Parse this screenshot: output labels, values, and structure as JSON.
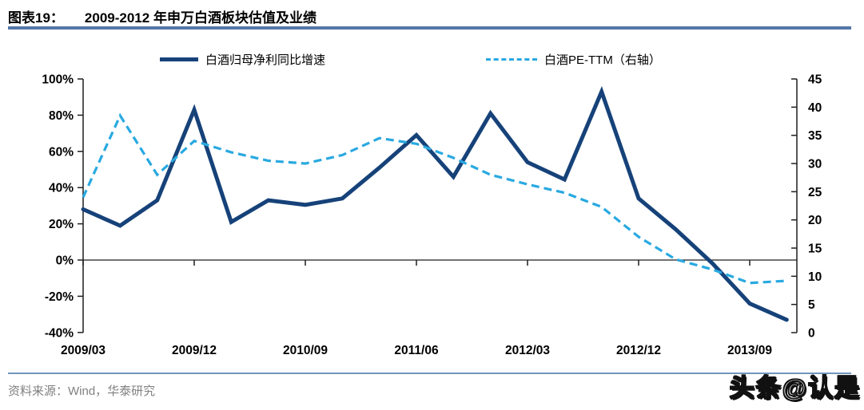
{
  "header": {
    "figure_label": "图表19：",
    "title": "2009-2012 年申万白酒板块估值及业绩"
  },
  "legend": [
    {
      "label": "白酒归母净利同比增速",
      "style": "solid"
    },
    {
      "label": "白酒PE-TTM（右轴）",
      "style": "dashed"
    }
  ],
  "chart_data": {
    "type": "line",
    "x": [
      "2009/03",
      "2009/06",
      "2009/09",
      "2009/12",
      "2010/03",
      "2010/06",
      "2010/09",
      "2010/12",
      "2011/03",
      "2011/06",
      "2011/09",
      "2011/12",
      "2012/03",
      "2012/06",
      "2012/09",
      "2012/12",
      "2013/03",
      "2013/06",
      "2013/09",
      "2013/12"
    ],
    "series": [
      {
        "name": "白酒归母净利同比增速",
        "axis": "left",
        "style": "solid",
        "color": "#164279",
        "values": [
          28,
          19,
          33,
          83,
          21,
          33,
          30.5,
          34,
          51,
          69,
          46,
          81,
          54,
          44.5,
          93,
          34,
          17,
          -2,
          -24,
          -33
        ]
      },
      {
        "name": "白酒PE-TTM（右轴）",
        "axis": "right",
        "style": "dashed",
        "color": "#29A9E1",
        "values": [
          24,
          38.5,
          28,
          34,
          32,
          30.5,
          30,
          31.5,
          34.5,
          33.5,
          31,
          28,
          26.3,
          24.8,
          22.3,
          17,
          13,
          11.2,
          8.8,
          9.2
        ]
      }
    ],
    "left_axis": {
      "min": -40,
      "max": 100,
      "step": 20,
      "unit": "%",
      "tick_labels": [
        "100%",
        "80%",
        "60%",
        "40%",
        "20%",
        "0%",
        "-20%",
        "-40%"
      ]
    },
    "right_axis": {
      "min": 0,
      "max": 45,
      "step": 5,
      "tick_labels": [
        "45",
        "40",
        "35",
        "30",
        "25",
        "20",
        "15",
        "10",
        "5",
        "0"
      ]
    },
    "x_axis": {
      "tick_labels": [
        "2009/03",
        "2009/12",
        "2010/09",
        "2011/06",
        "2012/03",
        "2012/12",
        "2013/09"
      ],
      "tick_every": 3
    },
    "grid": false,
    "legend_position": "top",
    "zero_line_on_left_axis": true
  },
  "source": {
    "text": "资料来源：Wind，华泰研究"
  },
  "watermark": {
    "text": "头条@认是"
  },
  "colors": {
    "navy": "#164279",
    "sky_blue": "#29A9E1",
    "axis": "#1f1f1f",
    "title_rule": "#5478A8",
    "bottom_rule": "#7196BA",
    "source_text": "#808080"
  }
}
